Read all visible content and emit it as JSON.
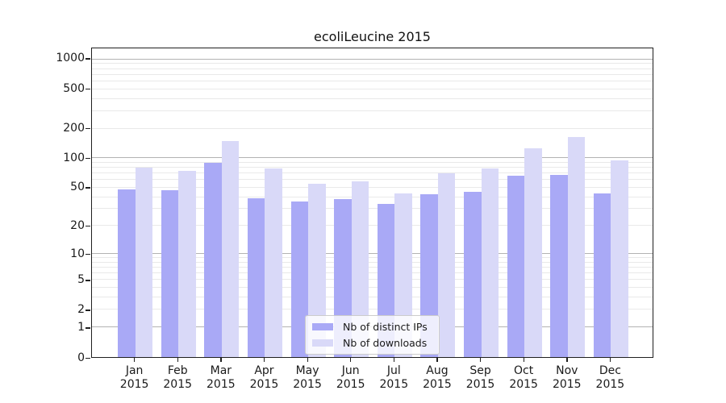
{
  "title": "ecoliLeucine 2015",
  "chart_data": {
    "type": "bar",
    "title": "ecoliLeucine 2015",
    "categories": [
      "Jan",
      "Feb",
      "Mar",
      "Apr",
      "May",
      "Jun",
      "Jul",
      "Aug",
      "Sep",
      "Oct",
      "Nov",
      "Dec"
    ],
    "x_tick_second_line": "2015",
    "series": [
      {
        "name": "Nb of distinct IPs",
        "color": "#a9a9f6",
        "values": [
          48,
          47,
          90,
          39,
          36,
          38,
          34,
          43,
          45,
          66,
          68,
          44
        ]
      },
      {
        "name": "Nb of downloads",
        "color": "#d9d9f8",
        "values": [
          80,
          74,
          150,
          78,
          55,
          58,
          44,
          70,
          78,
          127,
          165,
          95
        ]
      }
    ],
    "y_axis": {
      "scale": "log1p",
      "tick_values": [
        0,
        1,
        2,
        5,
        10,
        20,
        50,
        100,
        200,
        500,
        1000
      ],
      "tick_labels": [
        "0",
        "1",
        "2",
        "5",
        "10",
        "20",
        "50",
        "100",
        "200",
        "500",
        "1000"
      ],
      "major_gridline_values": [
        1,
        10,
        100,
        1000
      ],
      "minor_gridline_values": [
        2,
        3,
        4,
        5,
        6,
        7,
        8,
        9,
        20,
        30,
        40,
        50,
        60,
        70,
        80,
        90,
        200,
        300,
        400,
        500,
        600,
        700,
        800,
        900
      ]
    },
    "legend_position": "lower center",
    "grid": true
  },
  "colors": {
    "bar_dark": "#a9a9f6",
    "bar_light": "#d9d9f8",
    "grid_major": "#b3b3b3",
    "grid_minor": "#e9e9e9",
    "spine": "#1f1f1f"
  }
}
